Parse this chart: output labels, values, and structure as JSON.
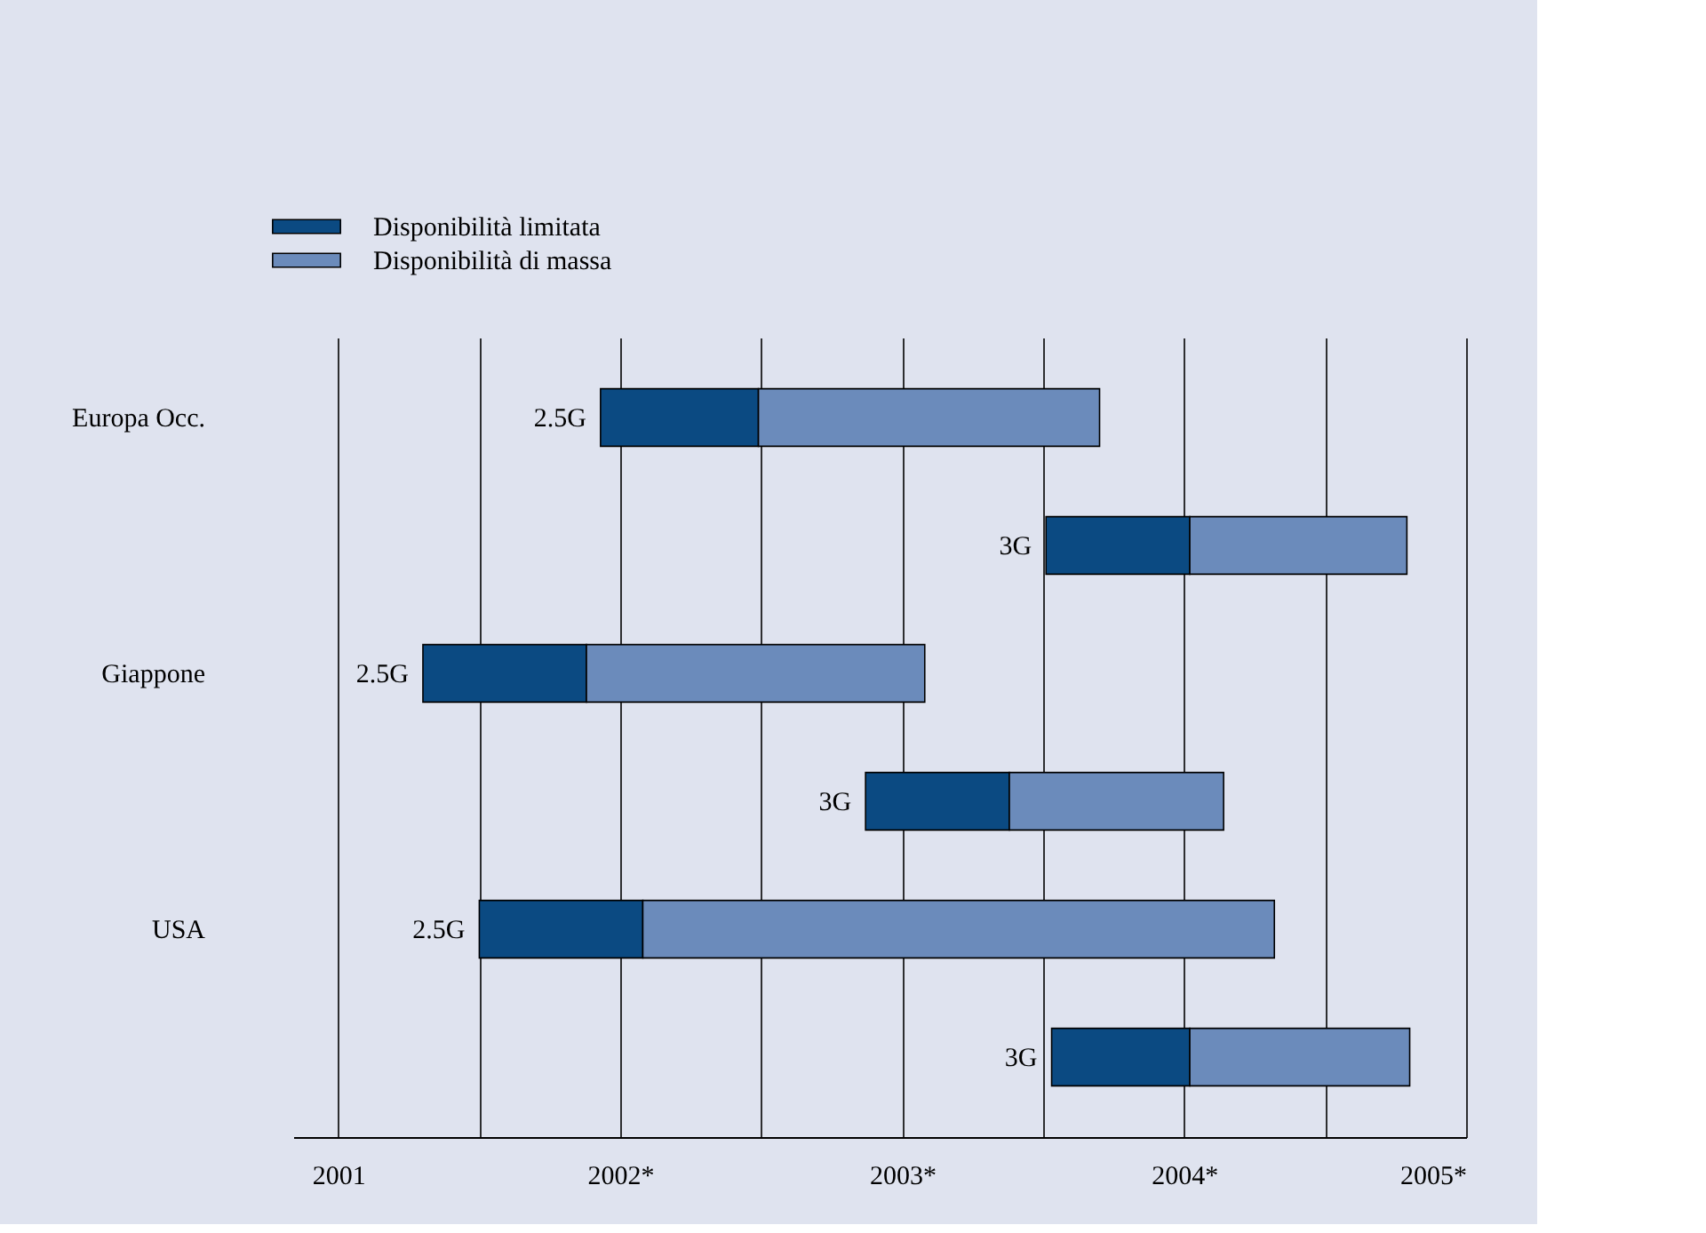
{
  "chart_data": {
    "type": "bar",
    "orientation": "horizontal",
    "categories": [
      "Europa Occ.",
      null,
      "Giappone",
      null,
      "USA",
      null
    ],
    "annotations": [
      {
        "text": "2.5G",
        "x": 2001.93
      },
      {
        "text": "3G",
        "x": 2003.51
      },
      {
        "text": "2.5G",
        "x": 2001.3
      },
      {
        "text": "3G",
        "x": 2002.87
      },
      {
        "text": "2.5G",
        "x": 2001.5
      },
      {
        "text": "3G",
        "x": 2003.53
      }
    ],
    "series": [
      {
        "name": "Disponibilità limitata",
        "color": "#0b4a82",
        "base": [
          2001.93,
          2003.51,
          2001.3,
          2002.87,
          2001.5,
          2003.53
        ],
        "values": [
          0.56,
          0.51,
          0.58,
          0.51,
          0.58,
          0.49
        ]
      },
      {
        "name": "Disponibilità di massa",
        "color": "#6b8bbb",
        "base": [
          2002.49,
          2004.02,
          2001.88,
          2003.38,
          2002.08,
          2004.02
        ],
        "values": [
          1.21,
          0.77,
          1.2,
          0.76,
          2.24,
          0.78
        ]
      }
    ],
    "xlim": [
      2000.84,
      2005
    ],
    "xticks": [
      {
        "value": 2001,
        "label": "2001"
      },
      {
        "value": 2001.5,
        "label": null
      },
      {
        "value": 2002,
        "label": "2002*"
      },
      {
        "value": 2002.5,
        "label": null
      },
      {
        "value": 2003,
        "label": "2003*"
      },
      {
        "value": 2003.5,
        "label": null
      },
      {
        "value": 2004,
        "label": "2004*"
      },
      {
        "value": 2004.5,
        "label": null
      },
      {
        "value": 2005,
        "label": "2005*"
      }
    ],
    "grid": "x",
    "legend": "top left"
  }
}
